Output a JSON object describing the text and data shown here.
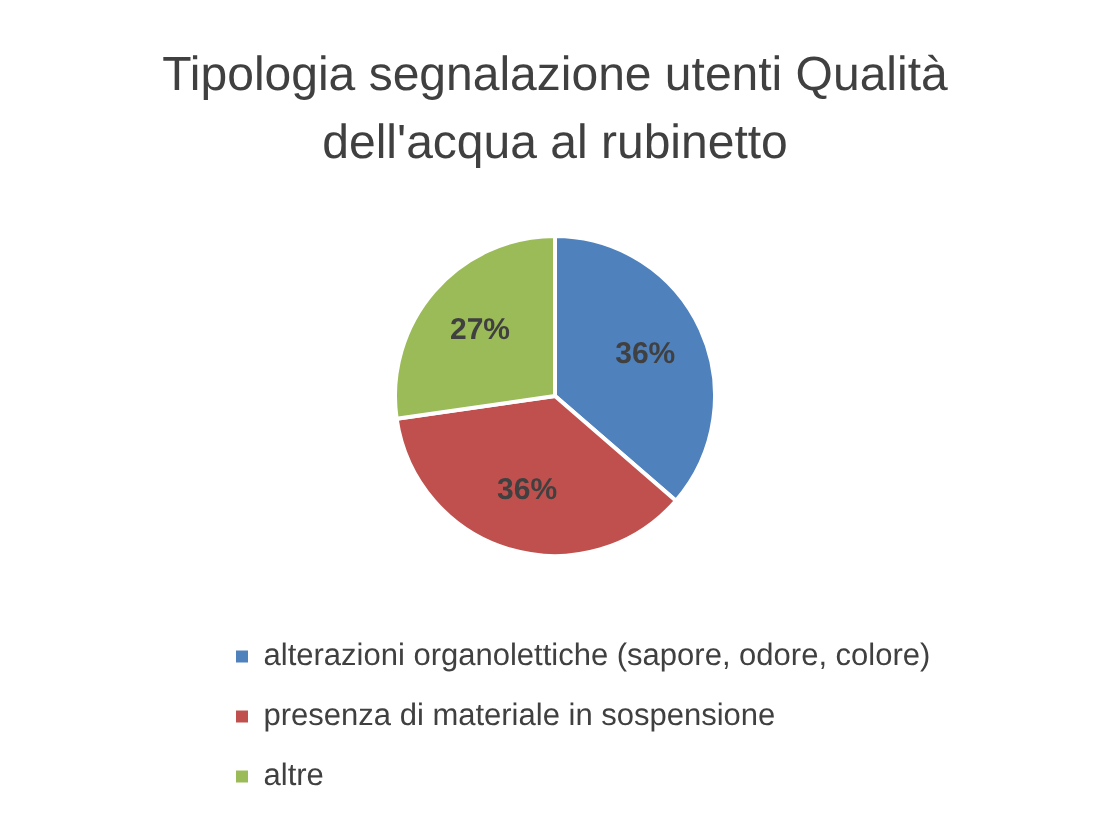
{
  "chart_data": {
    "type": "pie",
    "title": "Tipologia segnalazione utenti Qualità dell'acqua al rubinetto",
    "categories": [
      "alterazioni organolettiche (sapore, odore, colore)",
      "presenza di materiale in sospensione",
      "altre"
    ],
    "values": [
      36,
      36,
      27
    ],
    "colors": [
      "#4f81bd",
      "#c0504d",
      "#9bbb59"
    ],
    "value_labels": [
      "36%",
      "36%",
      "27%"
    ],
    "legend": "bottom"
  }
}
